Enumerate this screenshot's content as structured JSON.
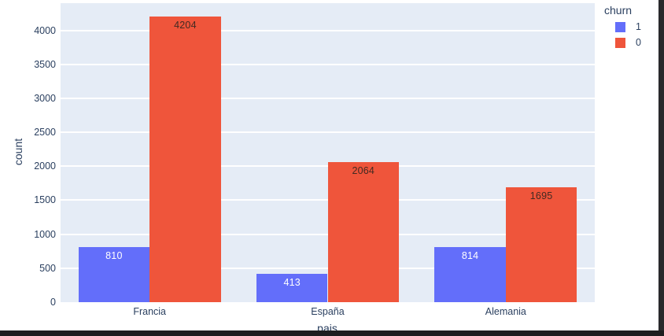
{
  "chart_data": {
    "type": "bar",
    "title": "",
    "xlabel": "pais",
    "ylabel": "count",
    "categories": [
      "Francia",
      "España",
      "Alemania"
    ],
    "series": [
      {
        "name": "1",
        "color": "#636efa",
        "label_color": "#ffffff",
        "values": [
          810,
          413,
          814
        ]
      },
      {
        "name": "0",
        "color": "#ef553b",
        "label_color": "#422a22",
        "values": [
          4204,
          2064,
          1695
        ]
      }
    ],
    "legend": {
      "title": "churn",
      "position": "top-right"
    },
    "ylim": [
      0,
      4400
    ],
    "yticks": [
      0,
      500,
      1000,
      1500,
      2000,
      2500,
      3000,
      3500,
      4000
    ],
    "grid": true,
    "bar_mode": "group"
  },
  "colors": {
    "plot_background": "#e5ecf6",
    "gridline": "#ffffff",
    "axis_text": "#2a3f5f",
    "page_background": "#ffffff",
    "window_edge_right": "#29292c",
    "window_edge_bottom": "#1d1d1f"
  }
}
